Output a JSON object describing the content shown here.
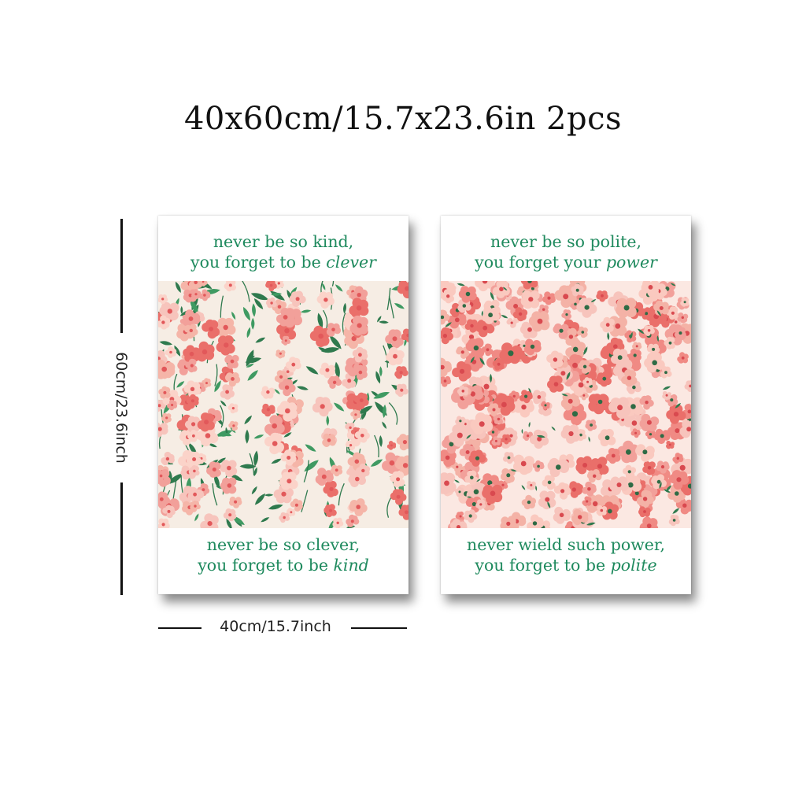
{
  "title": "40x60cm/15.7x23.6in 2pcs",
  "dimensions": {
    "height_label": "60cm/23.6inch",
    "width_label": "40cm/15.7inch"
  },
  "posters": [
    {
      "top_line1": "never be so kind,",
      "top_line2_prefix": "you forget to be ",
      "top_line2_em": "clever",
      "bottom_line1": "never be so clever,",
      "bottom_line2_prefix": "you forget to be ",
      "bottom_line2_em": "kind"
    },
    {
      "top_line1": "never be so polite,",
      "top_line2_prefix": "you forget your ",
      "top_line2_em": "power",
      "bottom_line1": "never wield such power,",
      "bottom_line2_prefix": "you forget to be ",
      "bottom_line2_em": "polite"
    }
  ],
  "colors": {
    "text_green": "#1f8a5e",
    "leaf_green": "#2f7a4e",
    "pink": "#f2a09a",
    "light_pink": "#f7c4bc",
    "coral": "#ea6f6a",
    "cream": "#f6ede4"
  }
}
